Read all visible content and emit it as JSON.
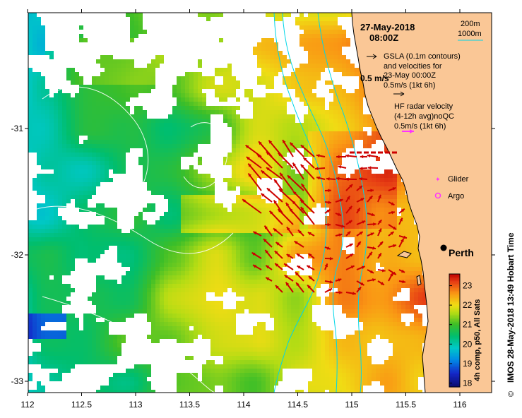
{
  "header": {
    "date": "27-May-2018",
    "time": "08:00Z"
  },
  "legend": {
    "contour_200": "200m",
    "contour_1000": "1000m",
    "gsla_line1": "GSLA (0.1m contours)",
    "gsla_line2": "and velocities for",
    "gsla_line3": "23-May 00:00Z",
    "gsla_scale": "0.5m/s (1kt 6h)",
    "ref_speed": "0.5 m/s",
    "hf_line1": "HF radar velocity",
    "hf_line2": "(4-12h avg)noQC",
    "hf_scale": "0.5m/s (1kt 6h)",
    "glider": "Glider",
    "argo": "Argo",
    "city": "Perth"
  },
  "colorbar": {
    "label": "4h comp, p50, All Sats",
    "ticks": [
      "18",
      "19",
      "20",
      "21",
      "22",
      "23"
    ],
    "range": [
      17.8,
      23.6
    ]
  },
  "credit": "IMOS 28-May-2018 13:49 Hobart Time",
  "copyright": "©",
  "axes": {
    "x_ticks": [
      "112",
      "112.5",
      "113",
      "113.5",
      "114",
      "114.5",
      "115",
      "115.5",
      "116"
    ],
    "x_values": [
      112,
      112.5,
      113,
      113.5,
      114,
      114.5,
      115,
      115.5,
      116
    ],
    "y_ticks": [
      "-31",
      "-32",
      "-33"
    ],
    "y_values": [
      -31,
      -32,
      -33
    ],
    "lon_range": [
      112,
      116.25
    ],
    "lat_range": [
      -30.07,
      -33.08
    ]
  },
  "colors": {
    "land": "#fac796",
    "hf_vector": "#cc0000",
    "bathymetry": "#00d6e8",
    "marker": "#ff33ff"
  }
}
